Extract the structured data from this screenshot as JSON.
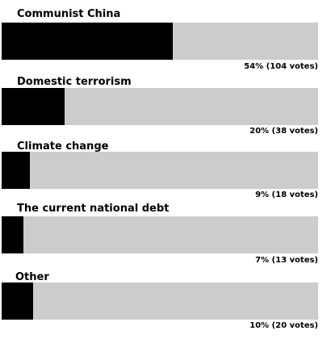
{
  "poll": {
    "options": [
      {
        "label": "Communist China",
        "percent": 54,
        "result_text": "54% (104 votes)"
      },
      {
        "label": "Domestic terrorism",
        "percent": 20,
        "result_text": "20% (38 votes)"
      },
      {
        "label": "Climate change",
        "percent": 9,
        "result_text": "9% (18 votes)"
      },
      {
        "label": "The current national debt",
        "percent": 7,
        "result_text": "7% (13 votes)"
      },
      {
        "label": "Other",
        "percent": 10,
        "result_text": "10% (20 votes)"
      }
    ]
  },
  "colors": {
    "fill": "#000000",
    "track": "#cccccc",
    "text": "#000000"
  }
}
